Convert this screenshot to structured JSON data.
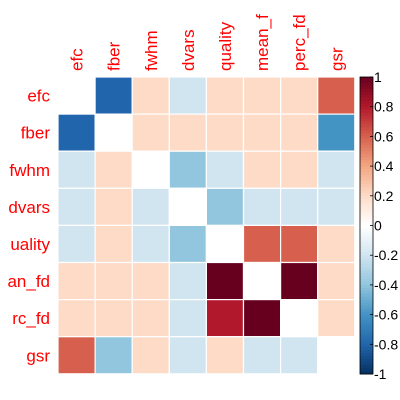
{
  "chart_data": {
    "type": "heatmap",
    "variables": [
      "efc",
      "fber",
      "fwhm",
      "dvars",
      "quality",
      "mean_fd",
      "perc_fd",
      "gsr"
    ],
    "row_labels": [
      "efc",
      "fber",
      "fwhm",
      "dvars",
      "uality",
      "an_fd",
      "rc_fd",
      "gsr"
    ],
    "col_labels": [
      "efc",
      "fber",
      "fwhm",
      "dvars",
      "quality",
      "mean_f",
      "perc_fd",
      "gsr"
    ],
    "matrix": [
      [
        1.0,
        -0.8,
        0.2,
        -0.2,
        0.2,
        0.2,
        0.2,
        0.6
      ],
      [
        -0.8,
        1.0,
        0.2,
        0.2,
        0.2,
        0.2,
        0.2,
        -0.6
      ],
      [
        -0.2,
        0.2,
        1.0,
        -0.4,
        -0.2,
        0.2,
        0.2,
        -0.2
      ],
      [
        -0.2,
        0.2,
        -0.2,
        1.0,
        -0.4,
        -0.2,
        -0.2,
        -0.2
      ],
      [
        -0.2,
        0.2,
        -0.2,
        -0.4,
        1.0,
        0.6,
        0.6,
        0.2
      ],
      [
        0.2,
        0.2,
        0.2,
        -0.2,
        1.0,
        1.0,
        1.0,
        0.2
      ],
      [
        0.2,
        0.2,
        0.2,
        -0.2,
        0.8,
        1.0,
        1.0,
        0.2
      ],
      [
        0.6,
        -0.4,
        0.2,
        -0.2,
        0.2,
        -0.2,
        -0.2,
        1.0
      ]
    ],
    "diagonal_blank": true,
    "colorbar": {
      "ticks": [
        1,
        0.8,
        0.6,
        0.4,
        0.2,
        0,
        -0.2,
        -0.4,
        -0.6,
        -0.8,
        -1
      ],
      "tick_labels": [
        "1",
        "0.8",
        "0.6",
        "0.4",
        "0.2",
        "0",
        "-0.2",
        "-0.4",
        "-0.6",
        "-0.8",
        "-1"
      ],
      "range": [
        -1,
        1
      ],
      "color_stops": [
        {
          "v": -1,
          "c": "#053061"
        },
        {
          "v": -0.8,
          "c": "#2166ac"
        },
        {
          "v": -0.6,
          "c": "#4393c3"
        },
        {
          "v": -0.4,
          "c": "#92c5de"
        },
        {
          "v": -0.2,
          "c": "#d1e5f0"
        },
        {
          "v": 0,
          "c": "#ffffff"
        },
        {
          "v": 0.2,
          "c": "#fddbc7"
        },
        {
          "v": 0.4,
          "c": "#f4a582"
        },
        {
          "v": 0.6,
          "c": "#d6604d"
        },
        {
          "v": 0.8,
          "c": "#b2182b"
        },
        {
          "v": 1,
          "c": "#67001f"
        }
      ]
    },
    "label_color": "#ff0000",
    "grid_color": "#ffffff"
  }
}
